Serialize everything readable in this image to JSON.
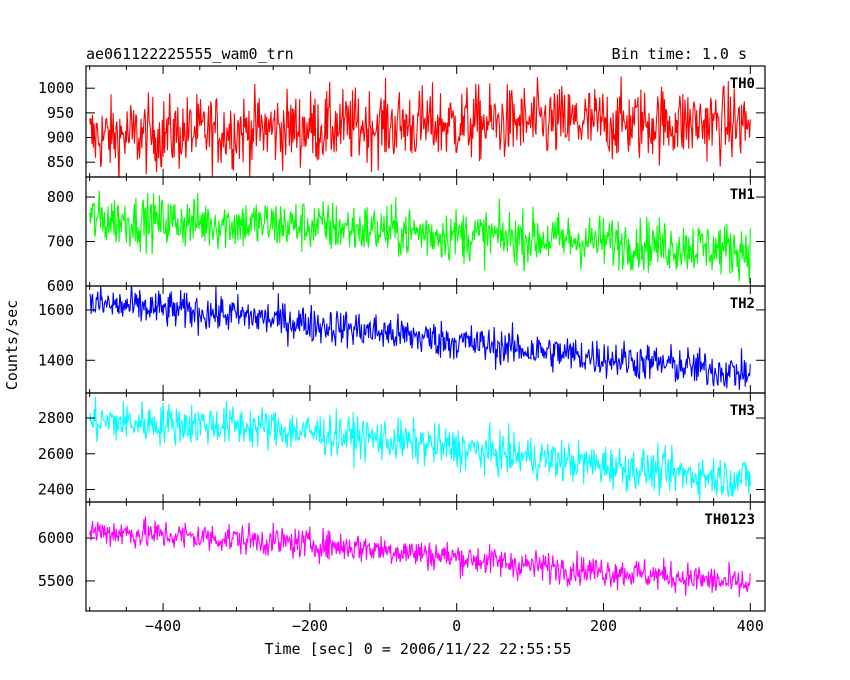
{
  "header": {
    "left": "ae061122225555_wam0_trn",
    "right": "Bin time: 1.0 s"
  },
  "chart_data": {
    "type": "line",
    "xlabel": "Time [sec] 0 = 2006/11/22 22:55:55",
    "ylabel": "Counts/sec",
    "x_range": [
      -500,
      400
    ],
    "xlim": [
      -505,
      420
    ],
    "x_ticks": [
      -400,
      -200,
      0,
      200,
      400
    ],
    "x_tick_labels": [
      "−400",
      "−200",
      "0",
      "200",
      "400"
    ],
    "panels": [
      {
        "name": "TH0",
        "color": "#ff0000",
        "ylim": [
          820,
          1045
        ],
        "y_ticks": [
          850,
          900,
          950,
          1000
        ],
        "trend": [
          [
            -500,
            900
          ],
          [
            -300,
            915
          ],
          [
            -100,
            925
          ],
          [
            100,
            930
          ],
          [
            300,
            930
          ],
          [
            400,
            928
          ]
        ],
        "noise": 38
      },
      {
        "name": "TH1",
        "color": "#00ff00",
        "ylim": [
          600,
          845
        ],
        "y_ticks": [
          600,
          700,
          800
        ],
        "trend": [
          [
            -500,
            750
          ],
          [
            -200,
            735
          ],
          [
            0,
            715
          ],
          [
            200,
            700
          ],
          [
            400,
            680
          ]
        ],
        "noise": 30
      },
      {
        "name": "TH2",
        "color": "#0000ff",
        "ylim": [
          1270,
          1695
        ],
        "y_ticks": [
          1400,
          1600
        ],
        "trend": [
          [
            -500,
            1625
          ],
          [
            -300,
            1580
          ],
          [
            -100,
            1510
          ],
          [
            100,
            1440
          ],
          [
            300,
            1380
          ],
          [
            400,
            1345
          ]
        ],
        "noise": 38
      },
      {
        "name": "TH3",
        "color": "#00ffff",
        "ylim": [
          2330,
          2940
        ],
        "y_ticks": [
          2400,
          2600,
          2800
        ],
        "trend": [
          [
            -500,
            2780
          ],
          [
            -300,
            2760
          ],
          [
            -100,
            2680
          ],
          [
            100,
            2580
          ],
          [
            300,
            2490
          ],
          [
            400,
            2460
          ]
        ],
        "noise": 60
      },
      {
        "name": "TH0123",
        "color": "#ff00ff",
        "ylim": [
          5150,
          6420
        ],
        "y_ticks": [
          5500,
          6000
        ],
        "trend": [
          [
            -500,
            6080
          ],
          [
            -300,
            5990
          ],
          [
            -100,
            5870
          ],
          [
            100,
            5680
          ],
          [
            300,
            5550
          ],
          [
            400,
            5450
          ]
        ],
        "noise": 90
      }
    ]
  }
}
